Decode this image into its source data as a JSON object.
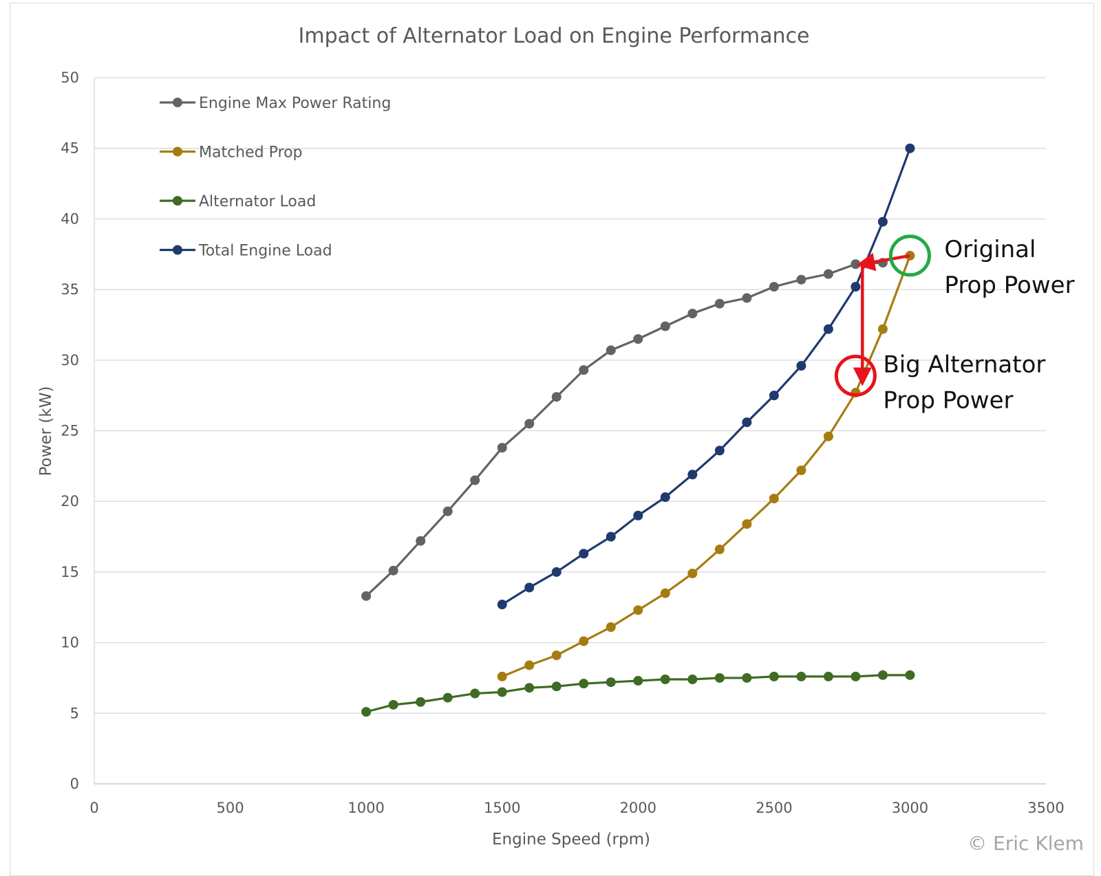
{
  "chart_data": {
    "type": "line",
    "title": "Impact of Alternator Load on Engine Performance",
    "xlabel": "Engine Speed (rpm)",
    "ylabel": "Power (kW)",
    "xlim": [
      0,
      3500
    ],
    "ylim": [
      0,
      50
    ],
    "xticks": [
      0,
      500,
      1000,
      1500,
      2000,
      2500,
      3000,
      3500
    ],
    "yticks": [
      0,
      5,
      10,
      15,
      20,
      25,
      30,
      35,
      40,
      45,
      50
    ],
    "grid": "horizontal",
    "legend_position": "top-left",
    "series": [
      {
        "name": "Engine Max Power Rating",
        "color": "#636363",
        "x": [
          1000,
          1100,
          1200,
          1300,
          1400,
          1500,
          1600,
          1700,
          1800,
          1900,
          2000,
          2100,
          2200,
          2300,
          2400,
          2500,
          2600,
          2700,
          2800,
          2900
        ],
        "y": [
          13.3,
          15.1,
          17.2,
          19.3,
          21.5,
          23.8,
          25.5,
          27.4,
          29.3,
          30.7,
          31.5,
          32.4,
          33.3,
          34.0,
          34.4,
          35.2,
          35.7,
          36.1,
          36.8,
          36.9
        ]
      },
      {
        "name": "Matched Prop",
        "color": "#a67c12",
        "x": [
          1500,
          1600,
          1700,
          1800,
          1900,
          2000,
          2100,
          2200,
          2300,
          2400,
          2500,
          2600,
          2700,
          2800,
          2900,
          3000
        ],
        "y": [
          7.6,
          8.4,
          9.1,
          10.1,
          11.1,
          12.3,
          13.5,
          14.9,
          16.6,
          18.4,
          20.2,
          22.2,
          24.6,
          27.7,
          32.2,
          37.4
        ]
      },
      {
        "name": "Alternator Load",
        "color": "#3f6b24",
        "x": [
          1000,
          1100,
          1200,
          1300,
          1400,
          1500,
          1600,
          1700,
          1800,
          1900,
          2000,
          2100,
          2200,
          2300,
          2400,
          2500,
          2600,
          2700,
          2800,
          2900,
          3000
        ],
        "y": [
          5.1,
          5.6,
          5.8,
          6.1,
          6.4,
          6.5,
          6.8,
          6.9,
          7.1,
          7.2,
          7.3,
          7.4,
          7.4,
          7.5,
          7.5,
          7.6,
          7.6,
          7.6,
          7.6,
          7.7,
          7.7
        ]
      },
      {
        "name": "Total Engine Load",
        "color": "#1f3a6e",
        "x": [
          1500,
          1600,
          1700,
          1800,
          1900,
          2000,
          2100,
          2200,
          2300,
          2400,
          2500,
          2600,
          2700,
          2800,
          2900,
          3000
        ],
        "y": [
          12.7,
          13.9,
          15.0,
          16.3,
          17.5,
          19.0,
          20.3,
          21.9,
          23.6,
          25.6,
          27.5,
          29.6,
          32.2,
          35.2,
          39.8,
          45.0
        ]
      }
    ],
    "annotations": [
      {
        "text_lines": [
          "Original",
          "Prop Power"
        ],
        "circle_at": [
          3000,
          37.4
        ],
        "circle_color": "#22aa44"
      },
      {
        "text_lines": [
          "Big Alternator",
          "Prop Power"
        ],
        "circle_at": [
          2800,
          28.9
        ],
        "circle_color": "#e8141c"
      }
    ],
    "arrows": [
      {
        "from": [
          3000,
          37.4
        ],
        "to": [
          2825,
          36.8
        ],
        "color": "#e8141c"
      },
      {
        "from": [
          2825,
          36.8
        ],
        "to": [
          2825,
          28.6
        ],
        "color": "#e8141c"
      }
    ]
  },
  "watermark": "© Eric Klem"
}
